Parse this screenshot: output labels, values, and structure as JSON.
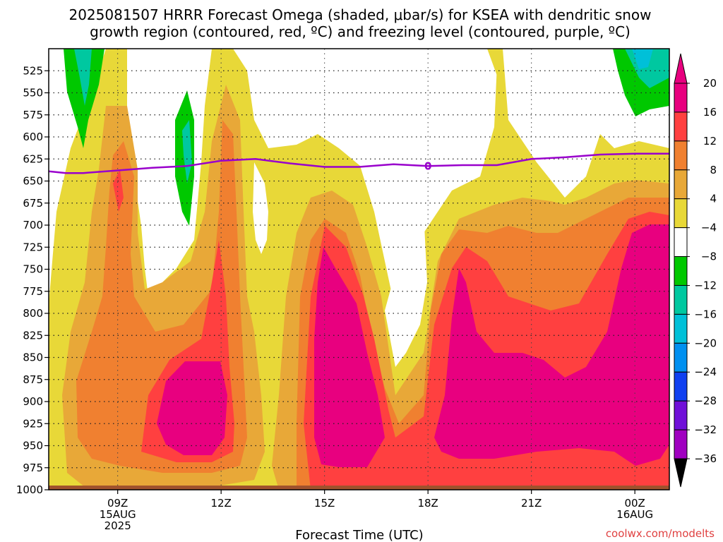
{
  "chart_data": {
    "type": "heatmap",
    "title_lines": [
      "2025081507 HRRR Forecast Omega (shaded, μbar/s) for KSEA with dendritic snow",
      "growth region (contoured, red, ºC) and freezing level (contoured, purple, ºC)"
    ],
    "xlabel": "Forecast Time (UTC)",
    "ylabel": "",
    "x_range_hours": [
      7,
      25
    ],
    "y_range_hPa": [
      500,
      1000
    ],
    "y_ticks": [
      525,
      550,
      575,
      600,
      625,
      650,
      675,
      700,
      725,
      750,
      775,
      800,
      825,
      850,
      875,
      900,
      925,
      950,
      975,
      1000
    ],
    "x_ticks": [
      {
        "hour": 9,
        "lines": [
          "09Z",
          "15AUG",
          "2025"
        ]
      },
      {
        "hour": 12,
        "lines": [
          "12Z"
        ]
      },
      {
        "hour": 15,
        "lines": [
          "15Z"
        ]
      },
      {
        "hour": 18,
        "lines": [
          "18Z"
        ]
      },
      {
        "hour": 21,
        "lines": [
          "21Z"
        ]
      },
      {
        "hour": 24,
        "lines": [
          "00Z",
          "16AUG"
        ]
      }
    ],
    "grid": true,
    "colorbar": {
      "position": "right",
      "labels": [
        "20",
        "16",
        "12",
        "8",
        "4",
        "−4",
        "−8",
        "−12",
        "−16",
        "−20",
        "−24",
        "−28",
        "−32",
        "−36"
      ],
      "bins": [
        {
          "color": "#e8007f"
        },
        {
          "color": "#ff4040"
        },
        {
          "color": "#f08030"
        },
        {
          "color": "#e8a838"
        },
        {
          "color": "#e8d838"
        },
        {
          "color": "#ffffff"
        },
        {
          "color": "#00c800"
        },
        {
          "color": "#00c8a0"
        },
        {
          "color": "#00c0d8"
        },
        {
          "color": "#0090f0"
        },
        {
          "color": "#1040f0"
        },
        {
          "color": "#7010d8"
        },
        {
          "color": "#a000c0"
        },
        {
          "color": "#a0a0a0"
        }
      ],
      "top_arrow_color": "#e8007f",
      "bottom_arrow_color": "#000000"
    },
    "freezing_level": {
      "label": "0",
      "color": "#9900cc",
      "x_hours": [
        7.0,
        7.5,
        8.0,
        9.0,
        10.0,
        11.0,
        12.0,
        13.0,
        14.0,
        15.0,
        16.0,
        17.0,
        18.0,
        19.0,
        20.0,
        21.0,
        22.0,
        23.0,
        24.0,
        25.0
      ],
      "pressure_hPa": [
        639,
        641,
        641,
        638,
        635,
        633,
        627,
        625,
        630,
        634,
        634,
        631,
        633,
        632,
        632,
        625,
        623,
        620,
        619,
        619
      ]
    },
    "ground_color": "#a0522d",
    "credit": "coolwx.com/modelts"
  }
}
